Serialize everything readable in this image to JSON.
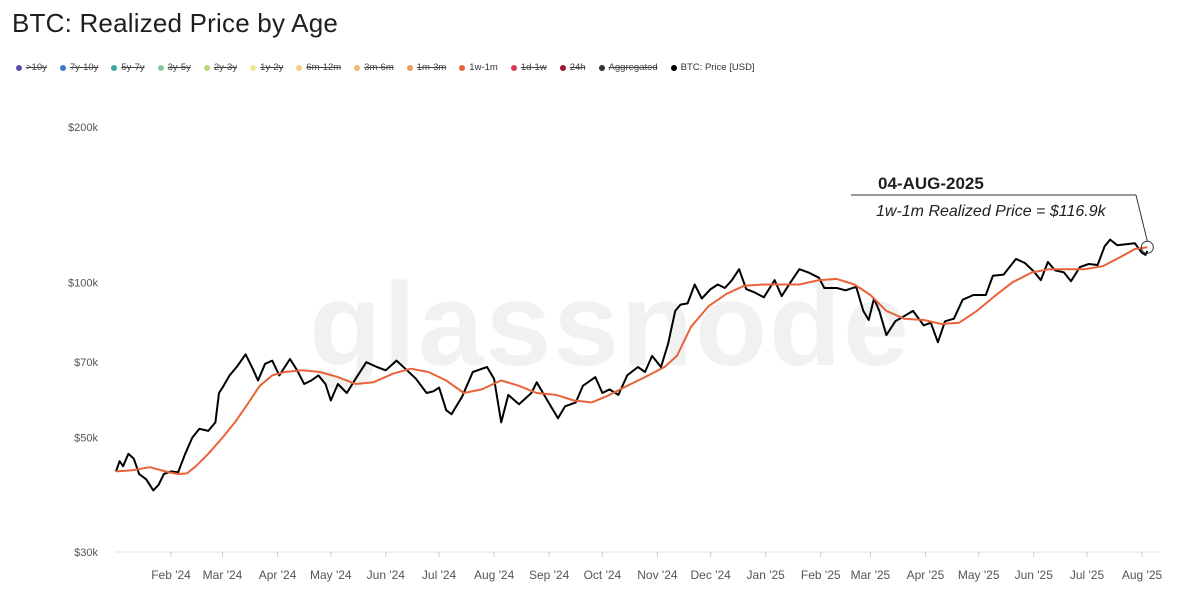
{
  "title": "BTC: Realized Price by Age",
  "legend": [
    {
      "label": ">10y",
      "color": "#5b4fa8",
      "active": false
    },
    {
      "label": "7y-10y",
      "color": "#3d7cc9",
      "active": false
    },
    {
      "label": "5y-7y",
      "color": "#3aa8a0",
      "active": false
    },
    {
      "label": "3y-5y",
      "color": "#86c9a0",
      "active": false
    },
    {
      "label": "2y-3y",
      "color": "#b8d87a",
      "active": false
    },
    {
      "label": "1y-2y",
      "color": "#f1e98c",
      "active": false
    },
    {
      "label": "6m-12m",
      "color": "#f5d27a",
      "active": false
    },
    {
      "label": "3m-6m",
      "color": "#f2b86b",
      "active": false
    },
    {
      "label": "1m-3m",
      "color": "#ef9a58",
      "active": false
    },
    {
      "label": "1w-1m",
      "color": "#e8633a",
      "active": true
    },
    {
      "label": "1d-1w",
      "color": "#d63a55",
      "active": false
    },
    {
      "label": "24h",
      "color": "#a3172e",
      "active": false
    },
    {
      "label": "Aggregated",
      "color": "#333333",
      "active": false
    },
    {
      "label": "BTC: Price [USD]",
      "color": "#000000",
      "active": true
    }
  ],
  "watermark": "glassnode",
  "annotation": {
    "date": "04-AUG-2025",
    "text": "1w-1m Realized Price = $116.9k"
  },
  "chart_data": {
    "type": "line",
    "title": "BTC: Realized Price by Age",
    "y_scale": "log",
    "ylim": [
      30000,
      200000
    ],
    "yticks": [
      {
        "value": 30000,
        "label": "$30k"
      },
      {
        "value": 50000,
        "label": "$50k"
      },
      {
        "value": 70000,
        "label": "$70k"
      },
      {
        "value": 100000,
        "label": "$100k"
      },
      {
        "value": 200000,
        "label": "$200k"
      }
    ],
    "xlim": [
      "2024-01-01",
      "2025-08-10"
    ],
    "xticks": [
      {
        "date": "2024-02-01",
        "label": "Feb '24"
      },
      {
        "date": "2024-03-01",
        "label": "Mar '24"
      },
      {
        "date": "2024-04-01",
        "label": "Apr '24"
      },
      {
        "date": "2024-05-01",
        "label": "May '24"
      },
      {
        "date": "2024-06-01",
        "label": "Jun '24"
      },
      {
        "date": "2024-07-01",
        "label": "Jul '24"
      },
      {
        "date": "2024-08-01",
        "label": "Aug '24"
      },
      {
        "date": "2024-09-01",
        "label": "Sep '24"
      },
      {
        "date": "2024-10-01",
        "label": "Oct '24"
      },
      {
        "date": "2024-11-01",
        "label": "Nov '24"
      },
      {
        "date": "2024-12-01",
        "label": "Dec '24"
      },
      {
        "date": "2025-01-01",
        "label": "Jan '25"
      },
      {
        "date": "2025-02-01",
        "label": "Feb '25"
      },
      {
        "date": "2025-03-01",
        "label": "Mar '25"
      },
      {
        "date": "2025-04-01",
        "label": "Apr '25"
      },
      {
        "date": "2025-05-01",
        "label": "May '25"
      },
      {
        "date": "2025-06-01",
        "label": "Jun '25"
      },
      {
        "date": "2025-07-01",
        "label": "Jul '25"
      },
      {
        "date": "2025-08-01",
        "label": "Aug '25"
      }
    ],
    "series": [
      {
        "name": "BTC: Price [USD]",
        "color": "#000000",
        "points": [
          [
            "2024-01-01",
            43000
          ],
          [
            "2024-01-03",
            45000
          ],
          [
            "2024-01-05",
            44000
          ],
          [
            "2024-01-08",
            46500
          ],
          [
            "2024-01-11",
            45500
          ],
          [
            "2024-01-14",
            42500
          ],
          [
            "2024-01-18",
            41500
          ],
          [
            "2024-01-22",
            39500
          ],
          [
            "2024-01-25",
            40500
          ],
          [
            "2024-01-28",
            42500
          ],
          [
            "2024-02-01",
            43000
          ],
          [
            "2024-02-05",
            42800
          ],
          [
            "2024-02-09",
            46500
          ],
          [
            "2024-02-13",
            50000
          ],
          [
            "2024-02-17",
            52000
          ],
          [
            "2024-02-22",
            51500
          ],
          [
            "2024-02-26",
            53500
          ],
          [
            "2024-02-28",
            61000
          ],
          [
            "2024-03-01",
            62500
          ],
          [
            "2024-03-05",
            66000
          ],
          [
            "2024-03-09",
            68500
          ],
          [
            "2024-03-14",
            72500
          ],
          [
            "2024-03-18",
            68000
          ],
          [
            "2024-03-21",
            64500
          ],
          [
            "2024-03-25",
            69500
          ],
          [
            "2024-03-29",
            70500
          ],
          [
            "2024-04-02",
            66000
          ],
          [
            "2024-04-08",
            71000
          ],
          [
            "2024-04-12",
            67500
          ],
          [
            "2024-04-16",
            63500
          ],
          [
            "2024-04-20",
            64500
          ],
          [
            "2024-04-24",
            66000
          ],
          [
            "2024-04-28",
            63500
          ],
          [
            "2024-05-01",
            59000
          ],
          [
            "2024-05-05",
            63500
          ],
          [
            "2024-05-10",
            61000
          ],
          [
            "2024-05-15",
            65000
          ],
          [
            "2024-05-21",
            70000
          ],
          [
            "2024-05-27",
            68500
          ],
          [
            "2024-06-01",
            67500
          ],
          [
            "2024-06-07",
            70500
          ],
          [
            "2024-06-12",
            68000
          ],
          [
            "2024-06-18",
            65000
          ],
          [
            "2024-06-24",
            61000
          ],
          [
            "2024-06-28",
            61500
          ],
          [
            "2024-07-01",
            62500
          ],
          [
            "2024-07-05",
            56500
          ],
          [
            "2024-07-08",
            55500
          ],
          [
            "2024-07-14",
            60000
          ],
          [
            "2024-07-20",
            67000
          ],
          [
            "2024-07-28",
            68500
          ],
          [
            "2024-08-01",
            65000
          ],
          [
            "2024-08-05",
            53500
          ],
          [
            "2024-08-09",
            60500
          ],
          [
            "2024-08-15",
            58000
          ],
          [
            "2024-08-22",
            61000
          ],
          [
            "2024-08-25",
            64000
          ],
          [
            "2024-08-31",
            59000
          ],
          [
            "2024-09-06",
            54500
          ],
          [
            "2024-09-10",
            57500
          ],
          [
            "2024-09-16",
            58500
          ],
          [
            "2024-09-20",
            63000
          ],
          [
            "2024-09-27",
            65500
          ],
          [
            "2024-10-01",
            61000
          ],
          [
            "2024-10-05",
            62000
          ],
          [
            "2024-10-10",
            60500
          ],
          [
            "2024-10-15",
            66000
          ],
          [
            "2024-10-21",
            68500
          ],
          [
            "2024-10-25",
            67000
          ],
          [
            "2024-10-29",
            72000
          ],
          [
            "2024-11-03",
            68500
          ],
          [
            "2024-11-07",
            76000
          ],
          [
            "2024-11-11",
            88000
          ],
          [
            "2024-11-14",
            90500
          ],
          [
            "2024-11-18",
            91000
          ],
          [
            "2024-11-22",
            99000
          ],
          [
            "2024-11-26",
            93000
          ],
          [
            "2024-12-01",
            97000
          ],
          [
            "2024-12-05",
            99000
          ],
          [
            "2024-12-09",
            97500
          ],
          [
            "2024-12-13",
            101000
          ],
          [
            "2024-12-17",
            106000
          ],
          [
            "2024-12-21",
            97000
          ],
          [
            "2024-12-26",
            95500
          ],
          [
            "2024-12-31",
            93500
          ],
          [
            "2025-01-06",
            101000
          ],
          [
            "2025-01-10",
            94000
          ],
          [
            "2025-01-15",
            100000
          ],
          [
            "2025-01-20",
            106000
          ],
          [
            "2025-01-25",
            104500
          ],
          [
            "2025-01-31",
            102000
          ],
          [
            "2025-02-03",
            97500
          ],
          [
            "2025-02-10",
            97500
          ],
          [
            "2025-02-15",
            96500
          ],
          [
            "2025-02-21",
            98000
          ],
          [
            "2025-02-25",
            88000
          ],
          [
            "2025-02-28",
            84500
          ],
          [
            "2025-03-03",
            93000
          ],
          [
            "2025-03-06",
            88000
          ],
          [
            "2025-03-10",
            79000
          ],
          [
            "2025-03-15",
            84000
          ],
          [
            "2025-03-20",
            86000
          ],
          [
            "2025-03-25",
            88000
          ],
          [
            "2025-03-31",
            82500
          ],
          [
            "2025-04-04",
            83500
          ],
          [
            "2025-04-08",
            76500
          ],
          [
            "2025-04-12",
            84000
          ],
          [
            "2025-04-17",
            85000
          ],
          [
            "2025-04-22",
            92500
          ],
          [
            "2025-04-28",
            94500
          ],
          [
            "2025-05-05",
            94500
          ],
          [
            "2025-05-09",
            103000
          ],
          [
            "2025-05-15",
            103500
          ],
          [
            "2025-05-22",
            111000
          ],
          [
            "2025-05-27",
            109000
          ],
          [
            "2025-06-01",
            105000
          ],
          [
            "2025-06-05",
            101000
          ],
          [
            "2025-06-09",
            109500
          ],
          [
            "2025-06-13",
            105500
          ],
          [
            "2025-06-18",
            104500
          ],
          [
            "2025-06-22",
            100500
          ],
          [
            "2025-06-27",
            107000
          ],
          [
            "2025-07-02",
            108500
          ],
          [
            "2025-07-07",
            108000
          ],
          [
            "2025-07-11",
            117500
          ],
          [
            "2025-07-14",
            121000
          ],
          [
            "2025-07-18",
            118000
          ],
          [
            "2025-07-23",
            118500
          ],
          [
            "2025-07-28",
            119000
          ],
          [
            "2025-08-01",
            114000
          ],
          [
            "2025-08-03",
            113000
          ],
          [
            "2025-08-04",
            115000
          ]
        ]
      },
      {
        "name": "1w-1m",
        "color": "#e8633a",
        "points": [
          [
            "2024-01-01",
            43000
          ],
          [
            "2024-01-10",
            43200
          ],
          [
            "2024-01-20",
            43800
          ],
          [
            "2024-01-31",
            42800
          ],
          [
            "2024-02-05",
            42500
          ],
          [
            "2024-02-10",
            42600
          ],
          [
            "2024-02-15",
            44000
          ],
          [
            "2024-02-22",
            46500
          ],
          [
            "2024-03-01",
            50000
          ],
          [
            "2024-03-08",
            53500
          ],
          [
            "2024-03-15",
            58000
          ],
          [
            "2024-03-22",
            63000
          ],
          [
            "2024-03-29",
            66000
          ],
          [
            "2024-04-05",
            67000
          ],
          [
            "2024-04-15",
            67500
          ],
          [
            "2024-04-25",
            67000
          ],
          [
            "2024-05-05",
            65500
          ],
          [
            "2024-05-15",
            63500
          ],
          [
            "2024-05-25",
            64000
          ],
          [
            "2024-06-05",
            66500
          ],
          [
            "2024-06-15",
            68000
          ],
          [
            "2024-06-25",
            67000
          ],
          [
            "2024-07-05",
            64500
          ],
          [
            "2024-07-15",
            61000
          ],
          [
            "2024-07-25",
            62000
          ],
          [
            "2024-08-05",
            64500
          ],
          [
            "2024-08-15",
            63000
          ],
          [
            "2024-08-25",
            61000
          ],
          [
            "2024-09-05",
            60500
          ],
          [
            "2024-09-15",
            59000
          ],
          [
            "2024-09-25",
            58500
          ],
          [
            "2024-10-05",
            60500
          ],
          [
            "2024-10-15",
            63000
          ],
          [
            "2024-10-25",
            65500
          ],
          [
            "2024-11-05",
            68500
          ],
          [
            "2024-11-12",
            72000
          ],
          [
            "2024-11-20",
            82000
          ],
          [
            "2024-11-30",
            90000
          ],
          [
            "2024-12-10",
            95000
          ],
          [
            "2024-12-20",
            98500
          ],
          [
            "2024-12-31",
            99000
          ],
          [
            "2025-01-10",
            99000
          ],
          [
            "2025-01-20",
            99000
          ],
          [
            "2025-01-31",
            101000
          ],
          [
            "2025-02-10",
            101500
          ],
          [
            "2025-02-20",
            99000
          ],
          [
            "2025-03-01",
            94500
          ],
          [
            "2025-03-10",
            88000
          ],
          [
            "2025-03-20",
            85000
          ],
          [
            "2025-03-31",
            84500
          ],
          [
            "2025-04-10",
            83000
          ],
          [
            "2025-04-20",
            83500
          ],
          [
            "2025-04-30",
            88000
          ],
          [
            "2025-05-10",
            94000
          ],
          [
            "2025-05-20",
            100000
          ],
          [
            "2025-05-31",
            104500
          ],
          [
            "2025-06-10",
            106000
          ],
          [
            "2025-06-20",
            106000
          ],
          [
            "2025-06-30",
            106000
          ],
          [
            "2025-07-10",
            107500
          ],
          [
            "2025-07-20",
            112000
          ],
          [
            "2025-07-28",
            116000
          ],
          [
            "2025-08-04",
            116900
          ]
        ]
      }
    ]
  }
}
